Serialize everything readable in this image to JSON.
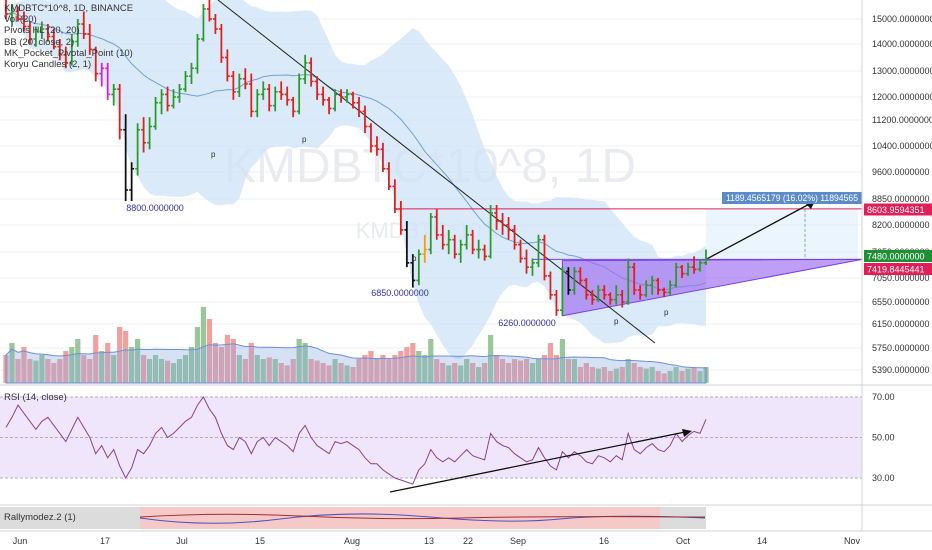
{
  "legend": {
    "symbol": "KMDBTC*10^8, 1D, BINANCE",
    "indicators": [
      "Vol (20)",
      "Pivots HL (20, 20)",
      "BB (20, close, 2)",
      "MK_Pocket_Pivotal_Point (10)",
      "Koryu Candles (2, 1)"
    ]
  },
  "watermark": "KMDBTC*10^8, 1D",
  "watermark2": "KMDBTC*10^8",
  "rsi_label": "RSI (14, close)",
  "rally_label": "Rallymodez.2 (1)",
  "colors": {
    "up": "#2e9a2e",
    "down": "#e0201b",
    "pink": "#e020c8",
    "orange": "#f39c12",
    "black": "#111111",
    "bb_fill": "#cfe3f7",
    "bb_line": "#6fa1d6",
    "triangle": "#9c6cf0",
    "rsi_line": "#8e3f8e",
    "rsi_band": "#eadcfa",
    "price_tag": "#e01f58",
    "measure_tag": "#5b8bc9"
  },
  "chart_data": {
    "type": "candlestick",
    "timeframe": "1D",
    "y_axis_ticks": [
      15000,
      14000,
      13000,
      12000,
      11200,
      10400,
      9600,
      8850,
      8200,
      7650,
      7050,
      6550,
      6150,
      5750,
      5390
    ],
    "y_axis_labels": [
      "15000.0000000",
      "14000.0000000",
      "13000.0000000",
      "12000.0000000",
      "11200.0000000",
      "10400.0000000",
      "9600.0000000",
      "8850.0000000",
      "8200.0000000",
      "7650.0000000",
      "7050.0000000",
      "6550.0000000",
      "6150.0000000",
      "5750.0000000",
      "5390.0000000"
    ],
    "x_axis_labels": [
      "Jun",
      "17",
      "Jul",
      "15",
      "Aug",
      "13",
      "22",
      "Sep",
      "16",
      "Oct",
      "14",
      "Nov"
    ],
    "pivot_labels": [
      "8800.0000000",
      "6850.0000000",
      "6260.0000000"
    ],
    "price_tags": [
      {
        "label": "8603.9594351",
        "value": 8603.96
      },
      {
        "label": "7480.0000000",
        "value": 7480
      },
      {
        "label": "7419.8445441",
        "value": 7419.84
      }
    ],
    "measure_label": "1189.4565179 (16.02%) 11894565",
    "candles": [
      [
        16000,
        16100,
        15000,
        15200
      ],
      [
        15200,
        15600,
        14700,
        15300
      ],
      [
        15300,
        15500,
        14900,
        15000
      ],
      [
        15000,
        15300,
        14500,
        14700
      ],
      [
        14700,
        14900,
        14000,
        14200
      ],
      [
        14200,
        14700,
        13900,
        14500
      ],
      [
        14500,
        14900,
        14200,
        14600
      ],
      [
        14600,
        14800,
        14100,
        14300
      ],
      [
        14300,
        14600,
        13800,
        13900
      ],
      [
        13900,
        14200,
        13400,
        13600
      ],
      [
        13600,
        13900,
        13100,
        13300
      ],
      [
        13300,
        14400,
        13200,
        14100
      ],
      [
        14100,
        15000,
        13900,
        14800
      ],
      [
        14800,
        15300,
        14200,
        14400
      ],
      [
        14400,
        14800,
        13600,
        13800
      ],
      [
        13800,
        13900,
        12600,
        12900
      ],
      [
        12900,
        13300,
        12400,
        13100
      ],
      [
        13100,
        13300,
        11900,
        12100
      ],
      [
        12100,
        12500,
        11700,
        12300
      ],
      [
        12300,
        12500,
        10600,
        10900
      ],
      [
        10900,
        11400,
        8800,
        9100
      ],
      [
        9100,
        9900,
        8800,
        9700
      ],
      [
        9700,
        11100,
        9500,
        10900
      ],
      [
        10900,
        11300,
        10200,
        10500
      ],
      [
        10500,
        11300,
        10300,
        11000
      ],
      [
        11000,
        12000,
        10900,
        11800
      ],
      [
        11800,
        12300,
        11400,
        12100
      ],
      [
        12100,
        12400,
        11500,
        11700
      ],
      [
        11700,
        12300,
        11600,
        12000
      ],
      [
        12000,
        12500,
        11800,
        12300
      ],
      [
        12300,
        13000,
        12200,
        12800
      ],
      [
        12800,
        13300,
        12500,
        13100
      ],
      [
        13100,
        14400,
        12900,
        14200
      ],
      [
        14200,
        15600,
        14100,
        15400
      ],
      [
        15400,
        16000,
        14900,
        15000
      ],
      [
        15000,
        15200,
        14400,
        14600
      ],
      [
        14600,
        14800,
        13300,
        13500
      ],
      [
        13500,
        13800,
        12600,
        12800
      ],
      [
        12800,
        13000,
        11900,
        12200
      ],
      [
        12200,
        12900,
        12000,
        12700
      ],
      [
        12700,
        13100,
        12300,
        12500
      ],
      [
        12500,
        12900,
        11300,
        11500
      ],
      [
        11500,
        12300,
        11300,
        12100
      ],
      [
        12100,
        12600,
        11900,
        12300
      ],
      [
        12300,
        12500,
        11500,
        11700
      ],
      [
        11700,
        12400,
        11500,
        12200
      ],
      [
        12200,
        12600,
        11900,
        12100
      ],
      [
        12100,
        12400,
        11700,
        11900
      ],
      [
        11900,
        12000,
        11300,
        11500
      ],
      [
        11500,
        12900,
        11400,
        12700
      ],
      [
        12700,
        13600,
        12500,
        13300
      ],
      [
        13300,
        13500,
        12400,
        12600
      ],
      [
        12600,
        12800,
        11900,
        12100
      ],
      [
        12100,
        12400,
        11700,
        11900
      ],
      [
        11900,
        12000,
        11400,
        11600
      ],
      [
        11600,
        12300,
        11500,
        12100
      ],
      [
        12100,
        12300,
        11800,
        12000
      ],
      [
        12000,
        12300,
        11800,
        12100
      ],
      [
        12100,
        12200,
        11600,
        11800
      ],
      [
        11800,
        12000,
        11300,
        11500
      ],
      [
        11500,
        11700,
        10800,
        11000
      ],
      [
        11000,
        11100,
        10200,
        10400
      ],
      [
        10400,
        10700,
        10100,
        10300
      ],
      [
        10300,
        10500,
        9600,
        9700
      ],
      [
        9700,
        9900,
        9100,
        9200
      ],
      [
        9200,
        9400,
        8500,
        8600
      ],
      [
        8600,
        8800,
        8000,
        8100
      ],
      [
        8100,
        8300,
        7300,
        7400
      ],
      [
        7400,
        7600,
        6850,
        7000
      ],
      [
        7000,
        7700,
        6900,
        7600
      ],
      [
        7600,
        8000,
        7400,
        7700
      ],
      [
        7700,
        8500,
        7600,
        8400
      ],
      [
        8400,
        8600,
        7900,
        8000
      ],
      [
        8000,
        8200,
        7700,
        7800
      ],
      [
        7800,
        8100,
        7600,
        7900
      ],
      [
        7900,
        8000,
        7500,
        7600
      ],
      [
        7600,
        7900,
        7400,
        7800
      ],
      [
        7800,
        8200,
        7700,
        8000
      ],
      [
        8000,
        8100,
        7600,
        7700
      ],
      [
        7700,
        7900,
        7500,
        7700
      ],
      [
        7700,
        7800,
        7450,
        7550
      ],
      [
        7550,
        8700,
        7500,
        8500
      ],
      [
        8500,
        8700,
        8100,
        8300
      ],
      [
        8300,
        8500,
        8000,
        8200
      ],
      [
        8200,
        8400,
        7900,
        8100
      ],
      [
        8100,
        8200,
        7700,
        7800
      ],
      [
        7800,
        7900,
        7400,
        7500
      ],
      [
        7500,
        7700,
        7150,
        7300
      ],
      [
        7300,
        7500,
        7100,
        7400
      ],
      [
        7400,
        8000,
        7300,
        7900
      ],
      [
        7900,
        8000,
        7000,
        7100
      ],
      [
        7100,
        7200,
        6600,
        6700
      ],
      [
        6700,
        6800,
        6300,
        6400
      ],
      [
        6400,
        7300,
        6300,
        7200
      ],
      [
        7200,
        7300,
        6700,
        6800
      ],
      [
        6800,
        7300,
        6700,
        7200
      ],
      [
        7200,
        7300,
        6900,
        7000
      ],
      [
        7000,
        7050,
        6600,
        6700
      ],
      [
        6700,
        6800,
        6500,
        6600
      ],
      [
        6600,
        6900,
        6550,
        6800
      ],
      [
        6800,
        6900,
        6600,
        6700
      ],
      [
        6700,
        6750,
        6500,
        6600
      ],
      [
        6600,
        6900,
        6500,
        6700
      ],
      [
        6700,
        6800,
        6450,
        6550
      ],
      [
        6550,
        7500,
        6500,
        7300
      ],
      [
        7300,
        7400,
        6700,
        6800
      ],
      [
        6800,
        6900,
        6600,
        6700
      ],
      [
        6700,
        7000,
        6650,
        6900
      ],
      [
        6900,
        7100,
        6700,
        7000
      ],
      [
        7000,
        7050,
        6700,
        6800
      ],
      [
        6800,
        6850,
        6650,
        6750
      ],
      [
        6750,
        7000,
        6700,
        6900
      ],
      [
        6900,
        7400,
        6850,
        7300
      ],
      [
        7300,
        7350,
        7050,
        7150
      ],
      [
        7150,
        7400,
        7100,
        7300
      ],
      [
        7300,
        7550,
        7150,
        7250
      ],
      [
        7250,
        7480,
        7200,
        7400
      ],
      [
        7400,
        7700,
        7350,
        7480
      ]
    ],
    "volume": [
      0.35,
      0.5,
      0.3,
      0.45,
      0.3,
      0.28,
      0.35,
      0.3,
      0.25,
      0.3,
      0.4,
      0.45,
      0.55,
      0.35,
      0.3,
      0.6,
      0.4,
      0.5,
      0.35,
      0.7,
      0.65,
      0.45,
      0.55,
      0.35,
      0.3,
      0.35,
      0.3,
      0.28,
      0.25,
      0.3,
      0.35,
      0.45,
      0.7,
      0.95,
      0.8,
      0.5,
      0.45,
      0.6,
      0.55,
      0.35,
      0.3,
      0.5,
      0.35,
      0.3,
      0.32,
      0.3,
      0.25,
      0.22,
      0.3,
      0.55,
      0.5,
      0.3,
      0.28,
      0.25,
      0.22,
      0.3,
      0.25,
      0.22,
      0.2,
      0.3,
      0.35,
      0.4,
      0.3,
      0.35,
      0.3,
      0.35,
      0.4,
      0.45,
      0.5,
      0.4,
      0.35,
      0.55,
      0.3,
      0.25,
      0.22,
      0.25,
      0.22,
      0.3,
      0.25,
      0.2,
      0.25,
      0.6,
      0.35,
      0.3,
      0.25,
      0.3,
      0.28,
      0.3,
      0.25,
      0.3,
      0.35,
      0.5,
      0.35,
      0.55,
      0.3,
      0.3,
      0.2,
      0.25,
      0.2,
      0.18,
      0.2,
      0.15,
      0.18,
      0.2,
      0.3,
      0.25,
      0.2,
      0.18,
      0.2,
      0.15,
      0.12,
      0.15,
      0.2,
      0.15,
      0.18,
      0.2,
      0.15,
      0.2
    ],
    "rsi": [
      55,
      60,
      66,
      62,
      58,
      54,
      58,
      60,
      56,
      52,
      48,
      54,
      60,
      55,
      50,
      42,
      46,
      40,
      44,
      36,
      30,
      35,
      44,
      42,
      46,
      52,
      55,
      50,
      52,
      55,
      58,
      60,
      66,
      70,
      64,
      60,
      52,
      46,
      44,
      50,
      48,
      42,
      48,
      50,
      46,
      50,
      48,
      46,
      43,
      52,
      56,
      50,
      46,
      44,
      42,
      48,
      47,
      48,
      46,
      44,
      40,
      37,
      37,
      34,
      32,
      30,
      29,
      28,
      27,
      34,
      37,
      44,
      40,
      38,
      40,
      38,
      41,
      44,
      41,
      40,
      39,
      52,
      48,
      46,
      45,
      42,
      40,
      38,
      39,
      45,
      40,
      36,
      34,
      43,
      40,
      43,
      41,
      38,
      37,
      41,
      40,
      38,
      41,
      39,
      52,
      44,
      42,
      45,
      47,
      44,
      43,
      46,
      52,
      48,
      51,
      53,
      52,
      59
    ],
    "rsi_levels": [
      70,
      50,
      30
    ]
  }
}
